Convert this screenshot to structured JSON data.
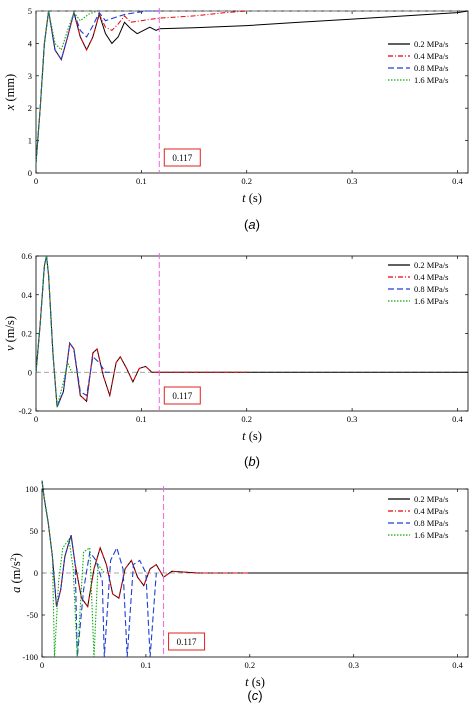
{
  "colors": {
    "s02": "#000000",
    "s04": "#e8000b",
    "s08": "#1f3fd6",
    "s16": "#10a810",
    "marker": "#ee66dd",
    "annotation_box": "#e02020",
    "reference": "#888888"
  },
  "legend_labels": [
    "0.2 MPa/s",
    "0.4 MPa/s",
    "0.8 MPa/s",
    "1.6 MPa/s"
  ],
  "chart_data": [
    {
      "type": "line",
      "panel": "a",
      "caption": "(a)",
      "ylabel_main": "x",
      "ylabel_unit": "(mm)",
      "xlabel_main": "t",
      "xlabel_unit": "(s)",
      "xlim": [
        0,
        0.41
      ],
      "ylim": [
        0,
        5
      ],
      "xticks": [
        "0",
        "0.1",
        "0.2",
        "0.3",
        "0.4"
      ],
      "yticks": [
        "0",
        "1",
        "2",
        "3",
        "4",
        "5"
      ],
      "annotation": "0.117",
      "marker_x": 0.117,
      "reference_y": 5,
      "legend_position": "top-right",
      "series": [
        {
          "name": "0.2 MPa/s",
          "x": [
            0,
            0.004,
            0.008,
            0.012,
            0.018,
            0.024,
            0.03,
            0.036,
            0.042,
            0.048,
            0.054,
            0.06,
            0.066,
            0.072,
            0.078,
            0.084,
            0.09,
            0.096,
            0.102,
            0.108,
            0.114,
            0.117,
            0.15,
            0.2,
            0.25,
            0.3,
            0.35,
            0.4,
            0.41
          ],
          "y": [
            0.3,
            2.0,
            4.0,
            5.0,
            3.8,
            3.5,
            4.2,
            4.95,
            4.2,
            3.8,
            4.2,
            4.9,
            4.3,
            4.0,
            4.2,
            4.65,
            4.45,
            4.3,
            4.4,
            4.5,
            4.4,
            4.45,
            4.48,
            4.55,
            4.65,
            4.75,
            4.85,
            4.95,
            5.0
          ]
        },
        {
          "name": "0.4 MPa/s",
          "x": [
            0,
            0.004,
            0.008,
            0.012,
            0.018,
            0.024,
            0.03,
            0.036,
            0.042,
            0.048,
            0.054,
            0.06,
            0.066,
            0.072,
            0.078,
            0.084,
            0.09,
            0.1,
            0.11,
            0.117,
            0.15,
            0.18,
            0.2
          ],
          "y": [
            0.3,
            2.0,
            4.0,
            5.0,
            3.8,
            3.5,
            4.2,
            4.95,
            4.2,
            3.8,
            4.2,
            4.9,
            4.5,
            4.4,
            4.6,
            4.85,
            4.65,
            4.7,
            4.75,
            4.78,
            4.85,
            4.95,
            5.0
          ]
        },
        {
          "name": "0.8 MPa/s",
          "x": [
            0,
            0.004,
            0.008,
            0.012,
            0.018,
            0.024,
            0.03,
            0.036,
            0.042,
            0.048,
            0.054,
            0.06,
            0.066,
            0.075,
            0.085,
            0.095,
            0.105,
            0.117
          ],
          "y": [
            0.3,
            2.0,
            4.0,
            5.0,
            3.8,
            3.5,
            4.2,
            4.95,
            4.4,
            4.2,
            4.55,
            4.95,
            4.7,
            4.8,
            4.9,
            4.95,
            5.0,
            5.0
          ]
        },
        {
          "name": "1.6 MPa/s",
          "x": [
            0,
            0.004,
            0.008,
            0.012,
            0.018,
            0.024,
            0.03,
            0.036,
            0.042,
            0.05,
            0.058
          ],
          "y": [
            0.3,
            2.0,
            4.0,
            5.0,
            4.0,
            3.8,
            4.4,
            4.95,
            4.7,
            4.9,
            5.0
          ]
        }
      ]
    },
    {
      "type": "line",
      "panel": "b",
      "caption": "(b)",
      "ylabel_main": "v",
      "ylabel_unit": "(m/s)",
      "xlabel_main": "t",
      "xlabel_unit": "(s)",
      "xlim": [
        0,
        0.41
      ],
      "ylim": [
        -0.2,
        0.6
      ],
      "xticks": [
        "0",
        "0.1",
        "0.2",
        "0.3",
        "0.4"
      ],
      "yticks": [
        "-0.2",
        "0",
        "0.2",
        "0.4",
        "0.6"
      ],
      "annotation": "0.117",
      "marker_x": 0.117,
      "reference_y": 0,
      "legend_position": "top-right",
      "series": [
        {
          "name": "0.2 MPa/s",
          "x": [
            0,
            0.004,
            0.008,
            0.01,
            0.012,
            0.016,
            0.02,
            0.026,
            0.032,
            0.036,
            0.042,
            0.048,
            0.054,
            0.058,
            0.064,
            0.07,
            0.076,
            0.08,
            0.086,
            0.092,
            0.098,
            0.104,
            0.11,
            0.117,
            0.2,
            0.3,
            0.41
          ],
          "y": [
            0,
            0.25,
            0.55,
            0.6,
            0.5,
            0.1,
            -0.18,
            -0.1,
            0.15,
            0.12,
            -0.12,
            -0.15,
            0.1,
            0.12,
            -0.02,
            -0.12,
            0.05,
            0.08,
            0.02,
            -0.05,
            0.02,
            0.03,
            0.0,
            0.0,
            0.0,
            0.0,
            0.0
          ]
        },
        {
          "name": "0.4 MPa/s",
          "x": [
            0,
            0.004,
            0.008,
            0.01,
            0.012,
            0.016,
            0.02,
            0.026,
            0.032,
            0.036,
            0.042,
            0.048,
            0.054,
            0.058,
            0.064,
            0.07,
            0.076,
            0.08,
            0.086,
            0.092,
            0.098,
            0.104,
            0.11,
            0.117,
            0.15,
            0.2
          ],
          "y": [
            0,
            0.25,
            0.55,
            0.6,
            0.5,
            0.1,
            -0.18,
            -0.1,
            0.15,
            0.12,
            -0.12,
            -0.15,
            0.1,
            0.12,
            -0.02,
            -0.12,
            0.05,
            0.08,
            0.02,
            -0.05,
            0.02,
            0.03,
            0.0,
            0.0,
            0.0,
            0.0
          ]
        },
        {
          "name": "0.8 MPa/s",
          "x": [
            0,
            0.004,
            0.008,
            0.01,
            0.012,
            0.016,
            0.02,
            0.026,
            0.032,
            0.036,
            0.042,
            0.048,
            0.054,
            0.06,
            0.066,
            0.07
          ],
          "y": [
            0,
            0.25,
            0.55,
            0.6,
            0.5,
            0.1,
            -0.18,
            -0.1,
            0.15,
            0.12,
            -0.1,
            -0.12,
            0.08,
            0.05,
            0.0,
            0.0
          ]
        },
        {
          "name": "1.6 MPa/s",
          "x": [
            0,
            0.004,
            0.008,
            0.01,
            0.012,
            0.016,
            0.02,
            0.026,
            0.03,
            0.034,
            0.04
          ],
          "y": [
            0,
            0.25,
            0.55,
            0.6,
            0.5,
            0.1,
            -0.18,
            -0.05,
            0.05,
            0.0,
            0.0
          ]
        }
      ]
    },
    {
      "type": "line",
      "panel": "c",
      "caption": "(c)",
      "ylabel_main": "a",
      "ylabel_unit": "(m/s",
      "ylabel_sup": "2",
      "ylabel_close": ")",
      "xlabel_main": "t",
      "xlabel_unit": "(s)",
      "xlim": [
        0,
        0.41
      ],
      "ylim": [
        -100,
        100
      ],
      "xticks": [
        "0",
        "0.1",
        "0.2",
        "0.3",
        "0.4"
      ],
      "yticks": [
        "-100",
        "-50",
        "0",
        "50",
        "100"
      ],
      "annotation": "0.117",
      "marker_x": 0.117,
      "reference_y": 0,
      "legend_position": "top-right",
      "series": [
        {
          "name": "0.2 MPa/s",
          "x": [
            0,
            0.002,
            0.006,
            0.01,
            0.014,
            0.018,
            0.022,
            0.028,
            0.032,
            0.038,
            0.044,
            0.05,
            0.056,
            0.062,
            0.068,
            0.074,
            0.08,
            0.086,
            0.092,
            0.098,
            0.104,
            0.11,
            0.117,
            0.125,
            0.15,
            0.2,
            0.25,
            0.3,
            0.35,
            0.41
          ],
          "y": [
            110,
            90,
            60,
            20,
            -40,
            -20,
            20,
            45,
            10,
            -30,
            -40,
            5,
            30,
            10,
            -25,
            -30,
            5,
            15,
            -5,
            -15,
            5,
            10,
            -5,
            2,
            0,
            0,
            0,
            0,
            0,
            0
          ]
        },
        {
          "name": "0.4 MPa/s",
          "x": [
            0,
            0.002,
            0.006,
            0.01,
            0.014,
            0.018,
            0.022,
            0.028,
            0.032,
            0.038,
            0.044,
            0.05,
            0.056,
            0.062,
            0.068,
            0.074,
            0.08,
            0.086,
            0.092,
            0.098,
            0.104,
            0.11,
            0.117,
            0.125,
            0.15,
            0.2
          ],
          "y": [
            110,
            90,
            60,
            20,
            -40,
            -20,
            20,
            45,
            10,
            -30,
            -40,
            5,
            30,
            10,
            -25,
            -30,
            5,
            15,
            -5,
            -15,
            5,
            10,
            -5,
            2,
            0,
            0
          ]
        },
        {
          "name": "0.8 MPa/s",
          "x": [
            0,
            0.002,
            0.006,
            0.01,
            0.014,
            0.018,
            0.022,
            0.028,
            0.032,
            0.034,
            0.04,
            0.046,
            0.052,
            0.058,
            0.06,
            0.066,
            0.072,
            0.078,
            0.082,
            0.088,
            0.094,
            0.1,
            0.104,
            0.11
          ],
          "y": [
            110,
            90,
            60,
            20,
            -40,
            -20,
            20,
            45,
            10,
            -100,
            -20,
            25,
            15,
            -10,
            -100,
            15,
            30,
            5,
            -100,
            10,
            15,
            0,
            -100,
            0
          ]
        },
        {
          "name": "1.6 MPa/s",
          "x": [
            0,
            0.002,
            0.006,
            0.01,
            0.012,
            0.016,
            0.02,
            0.026,
            0.03,
            0.034,
            0.04,
            0.046,
            0.05,
            0.054,
            0.06
          ],
          "y": [
            110,
            90,
            60,
            20,
            -100,
            -10,
            30,
            40,
            5,
            -100,
            25,
            30,
            -100,
            10,
            0
          ]
        }
      ]
    }
  ]
}
